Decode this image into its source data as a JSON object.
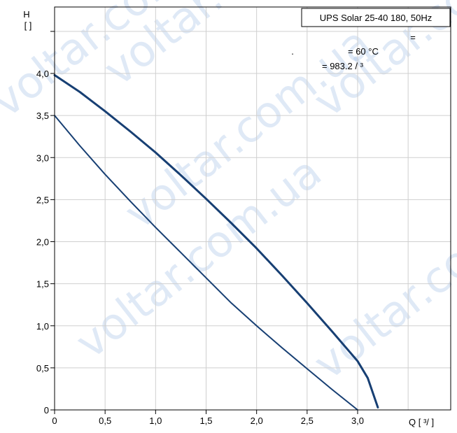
{
  "chart_data": {
    "type": "line",
    "title": "UPS Solar 25-40 180, 50Hz",
    "info_lines": [
      "=",
      ".",
      "= 60 °C",
      "= 983.2   / ³"
    ],
    "ylabel_symbol": "H",
    "ylabel_unit": "[  ]",
    "xlabel": "Q [  ³/  ]",
    "xlim": [
      0,
      3.5
    ],
    "ylim": [
      0,
      4.5
    ],
    "x_ticks": [
      "0",
      "0,5",
      "1,0",
      "1,5",
      "2,0",
      "2,5",
      "3,0"
    ],
    "y_ticks": [
      "0",
      "0,5",
      "1,0",
      "1,5",
      "2,0",
      "2,5",
      "3,0",
      "3,5",
      "4,0"
    ],
    "grid": true,
    "series": [
      {
        "color": "#173f73",
        "width": 3,
        "x": [
          0,
          0.25,
          0.5,
          0.75,
          1.0,
          1.25,
          1.5,
          1.75,
          2.0,
          2.25,
          2.5,
          2.75,
          3.0,
          3.1,
          3.2
        ],
        "y": [
          3.98,
          3.78,
          3.55,
          3.31,
          3.06,
          2.79,
          2.51,
          2.22,
          1.92,
          1.6,
          1.27,
          0.93,
          0.58,
          0.38,
          0.03
        ]
      },
      {
        "color": "#173f73",
        "width": 2,
        "x": [
          0,
          0.25,
          0.5,
          0.75,
          1.0,
          1.25,
          1.5,
          1.75,
          2.0,
          2.25,
          2.5,
          2.75,
          3.0
        ],
        "y": [
          3.5,
          3.14,
          2.8,
          2.48,
          2.17,
          1.87,
          1.57,
          1.27,
          1.0,
          0.74,
          0.49,
          0.24,
          0.0
        ]
      }
    ],
    "watermark": "voltar.com.ua"
  }
}
